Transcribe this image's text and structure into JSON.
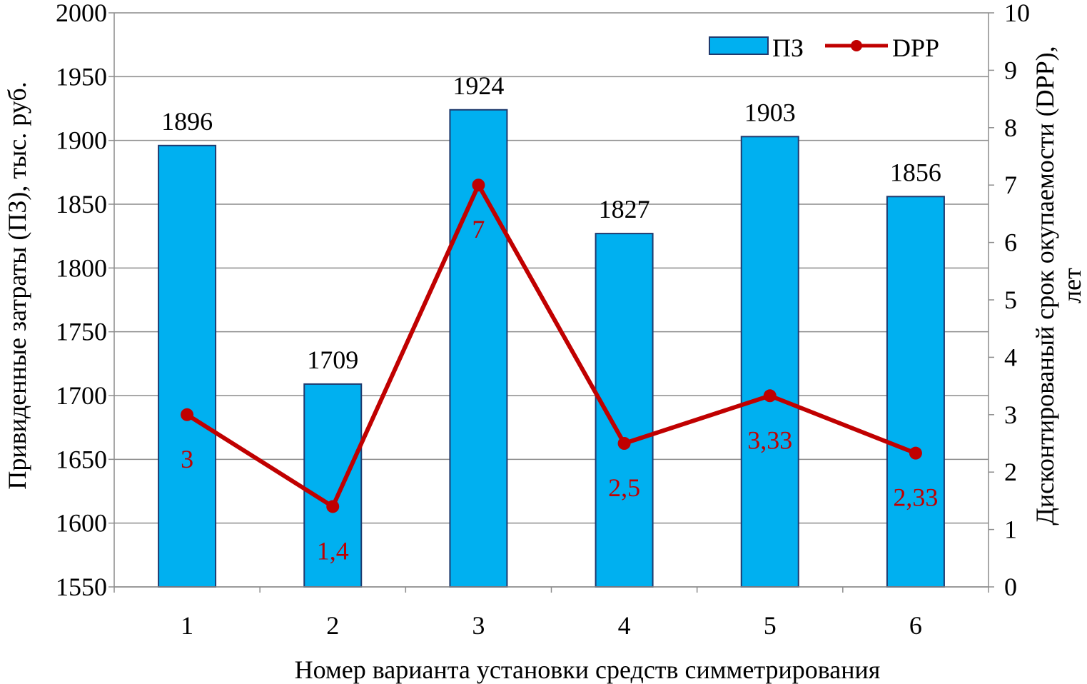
{
  "chart_data": {
    "type": "bar",
    "categories": [
      "1",
      "2",
      "3",
      "4",
      "5",
      "6"
    ],
    "series": [
      {
        "name": "ПЗ",
        "type": "bar",
        "axis": "left",
        "values": [
          1896,
          1709,
          1924,
          1827,
          1903,
          1856
        ],
        "labels": [
          "1896",
          "1709",
          "1924",
          "1827",
          "1903",
          "1856"
        ],
        "color": "#00b0f0",
        "border_color": "#1f3a6e"
      },
      {
        "name": "DPP",
        "type": "line",
        "axis": "right",
        "values": [
          3,
          1.4,
          7,
          2.5,
          3.33,
          2.33
        ],
        "labels": [
          "3",
          "1,4",
          "7",
          "2,5",
          "3,33",
          "2,33"
        ],
        "color": "#c00000"
      }
    ],
    "xlabel": "Номер варианта  установки  средств симметрирования",
    "ylabel": "Привиденные  затраты (ПЗ), тыс. руб.",
    "y2label_line1": "Дисконтированый  срок окупаемости (DPP),",
    "y2label_line2": "лет",
    "ylim": [
      1550,
      2000
    ],
    "y_ticks": [
      "1550",
      "1600",
      "1650",
      "1700",
      "1750",
      "1800",
      "1850",
      "1900",
      "1950",
      "2000"
    ],
    "y2lim": [
      0,
      10
    ],
    "y2_ticks": [
      "0",
      "1",
      "2",
      "3",
      "4",
      "5",
      "6",
      "7",
      "8",
      "9",
      "10"
    ],
    "grid": true,
    "legend_position": "top-right"
  }
}
